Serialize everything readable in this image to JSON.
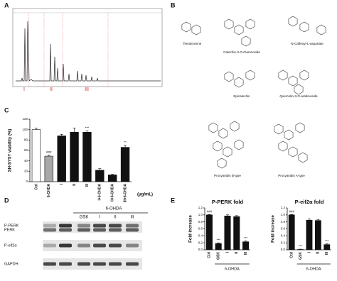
{
  "panel_labels": [
    "A",
    "B",
    "C",
    "D",
    "E"
  ],
  "chromatogram": {
    "regions": [
      "I",
      "II",
      "III"
    ]
  },
  "compounds": [
    "Theobromine",
    "Catechin-3-O-rhamnoside",
    "N-Caffeoyl-L-aspartate",
    "Epicatechin",
    "Quercetin-3-O-arabinoside",
    "Procyanidin B-type",
    "Procyanidin A-type"
  ],
  "blot": {
    "treatment": "6-OHDA",
    "lanes": [
      "GSK",
      "I",
      "II",
      "III"
    ],
    "rows": [
      "P-PERK",
      "PERK",
      "P-eif2α",
      "GAPDH"
    ]
  },
  "chart_data": [
    {
      "type": "bar",
      "y_label": "SH-SY5Y viability (%)",
      "x_label": "(μg/mL)",
      "categories": [
        "Ctrl",
        "6-OHDA",
        "I",
        "II",
        "III",
        "I+6-OHDA",
        "II+6-OHDA",
        "III+6-OHDA"
      ],
      "values": [
        100,
        49,
        88,
        95,
        95,
        22,
        13,
        66
      ],
      "errors": [
        3,
        2,
        3,
        8,
        3,
        3,
        1,
        4
      ],
      "colors": [
        "#ffffff",
        "#a8a8a8",
        "#111111",
        "#111111",
        "#111111",
        "#111111",
        "#111111",
        "#111111"
      ],
      "ylim": [
        0,
        120
      ],
      "yticks": [
        0,
        20,
        40,
        60,
        80,
        100,
        120
      ],
      "annotations": [
        {
          "text": "###",
          "category": "6-OHDA"
        },
        {
          "text": "***",
          "category": "III"
        },
        {
          "text": "**",
          "category": "III+6-OHDA"
        }
      ]
    },
    {
      "type": "bar",
      "title": "P-PERK fold",
      "y_label": "Fold increase",
      "group_label": "6-OHDA",
      "categories": [
        "Ctrl",
        "GSK",
        "I",
        "II",
        "III"
      ],
      "values": [
        1.0,
        0.18,
        0.97,
        0.95,
        0.23
      ],
      "errors": [
        0.01,
        0.02,
        0.03,
        0.03,
        0.02
      ],
      "colors": [
        "#111111",
        "#111111",
        "#111111",
        "#111111",
        "#111111"
      ],
      "ylim": [
        0,
        1.2
      ],
      "yticks": [
        {
          "value": 0,
          "label": "0.0"
        },
        {
          "value": 0.2,
          "label": "0.2"
        },
        {
          "value": 0.4,
          "label": "0.4"
        },
        {
          "value": 0.6,
          "label": "0.6"
        },
        {
          "value": 0.8,
          "label": "0.8"
        },
        {
          "value": 1,
          "label": "1.0"
        },
        {
          "value": 1.2,
          "label": "1.2"
        }
      ],
      "annotations": [
        {
          "text": "###",
          "category": "Ctrl"
        },
        {
          "text": "***",
          "category": "GSK"
        },
        {
          "text": "***",
          "category": "III"
        }
      ]
    },
    {
      "type": "bar",
      "title": "P-eif2α fold",
      "y_label": "Fold increase",
      "group_label": "6-OHDA",
      "categories": [
        "Ctrl",
        "GSK",
        "I",
        "II",
        "III"
      ],
      "values": [
        1.0,
        0.01,
        0.85,
        0.84,
        0.15
      ],
      "errors": [
        0.01,
        0.01,
        0.04,
        0.03,
        0.02
      ],
      "colors": [
        "#111111",
        "#111111",
        "#111111",
        "#111111",
        "#111111"
      ],
      "ylim": [
        0,
        1.2
      ],
      "yticks": [
        {
          "value": 0,
          "label": "0.0"
        },
        {
          "value": 0.2,
          "label": "0.2"
        },
        {
          "value": 0.4,
          "label": "0.4"
        },
        {
          "value": 0.6,
          "label": "0.6"
        },
        {
          "value": 0.8,
          "label": "0.8"
        },
        {
          "value": 1,
          "label": "1.0"
        },
        {
          "value": 1.2,
          "label": "1.2"
        }
      ],
      "annotations": [
        {
          "text": "###",
          "category": "Ctrl"
        },
        {
          "text": "***",
          "category": "GSK"
        },
        {
          "text": "***",
          "category": "III"
        }
      ]
    }
  ]
}
